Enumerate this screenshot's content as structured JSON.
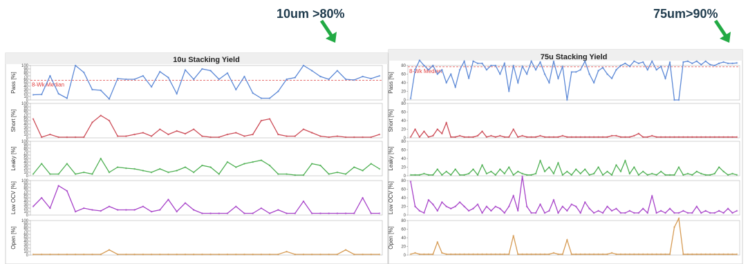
{
  "annotations": {
    "left": "10um >80%",
    "right": "75um>90%",
    "arrow_color": "#22aa44"
  },
  "chart_data": [
    {
      "type": "line",
      "title": "10u Stacking Yield",
      "median_label": "8-Wk Median",
      "median_value": 57,
      "panels": [
        {
          "ylabel": "Pass [%]",
          "color": "#5a87d6",
          "ticks": [
            0,
            10,
            20,
            30,
            40,
            50,
            60,
            70,
            80,
            90,
            100
          ],
          "values": [
            15,
            16,
            70,
            18,
            5,
            100,
            80,
            30,
            28,
            3,
            62,
            60,
            60,
            70,
            38,
            82,
            65,
            18,
            87,
            60,
            90,
            85,
            60,
            78,
            30,
            68,
            20,
            5,
            5,
            25,
            60,
            65,
            100,
            85,
            68,
            60,
            85,
            60,
            58,
            68,
            62,
            70
          ]
        },
        {
          "ylabel": "Short [%]",
          "color": "#cc4a55",
          "ticks": [
            0,
            10,
            20,
            30,
            40,
            50,
            60,
            70,
            80,
            90,
            100
          ],
          "values": [
            55,
            2,
            10,
            2,
            2,
            2,
            2,
            45,
            65,
            50,
            5,
            5,
            10,
            15,
            5,
            25,
            10,
            20,
            12,
            25,
            5,
            2,
            2,
            10,
            15,
            5,
            10,
            50,
            55,
            10,
            5,
            5,
            25,
            15,
            5,
            2,
            5,
            2,
            2,
            2,
            2,
            10
          ]
        },
        {
          "ylabel": "Leaky [%]",
          "color": "#4caf50",
          "ticks": [
            0,
            10,
            20,
            30,
            40,
            50,
            60,
            70,
            80,
            90,
            100
          ],
          "values": [
            5,
            35,
            5,
            5,
            35,
            5,
            10,
            5,
            50,
            10,
            25,
            22,
            20,
            15,
            10,
            20,
            10,
            15,
            25,
            10,
            30,
            25,
            5,
            40,
            25,
            35,
            40,
            45,
            30,
            5,
            5,
            2,
            2,
            35,
            30,
            5,
            10,
            5,
            25,
            15,
            35,
            20
          ]
        },
        {
          "ylabel": "Low OCV [%]",
          "color": "#a640c8",
          "ticks": [
            0,
            10,
            20,
            30,
            40,
            50,
            60,
            70,
            80,
            90,
            100
          ],
          "values": [
            25,
            50,
            20,
            85,
            70,
            10,
            20,
            15,
            12,
            25,
            15,
            15,
            15,
            25,
            10,
            15,
            45,
            10,
            35,
            15,
            5,
            5,
            5,
            5,
            25,
            5,
            5,
            20,
            5,
            15,
            5,
            5,
            40,
            5,
            5,
            5,
            5,
            5,
            5,
            50,
            5,
            5
          ]
        },
        {
          "ylabel": "Open [%]",
          "color": "#d69a52",
          "ticks": [
            0,
            10,
            20,
            30,
            40,
            50,
            60,
            70,
            80,
            90,
            100
          ],
          "values": [
            2,
            2,
            2,
            2,
            2,
            2,
            2,
            2,
            2,
            15,
            2,
            2,
            2,
            2,
            2,
            2,
            2,
            2,
            2,
            2,
            2,
            2,
            2,
            2,
            2,
            2,
            2,
            2,
            2,
            2,
            10,
            2,
            2,
            2,
            2,
            2,
            2,
            15,
            2,
            2,
            2,
            2
          ]
        }
      ]
    },
    {
      "type": "line",
      "title": "75u Stacking Yield",
      "median_label": "8-Wk Median",
      "median_value": 77,
      "panels": [
        {
          "ylabel": "Pass [%]",
          "color": "#5a87d6",
          "ticks": [
            0,
            20,
            40,
            60,
            80
          ],
          "values": [
            3,
            70,
            92,
            80,
            70,
            80,
            60,
            70,
            40,
            60,
            30,
            70,
            90,
            50,
            90,
            85,
            85,
            70,
            80,
            80,
            60,
            85,
            20,
            80,
            40,
            78,
            60,
            90,
            70,
            88,
            60,
            40,
            90,
            50,
            78,
            0,
            65,
            65,
            70,
            90,
            60,
            40,
            68,
            75,
            60,
            50,
            70,
            80,
            85,
            78,
            90,
            85,
            88,
            70,
            90,
            70,
            78,
            50,
            88,
            0,
            0,
            88,
            90,
            85,
            90,
            82,
            90,
            82,
            80,
            85,
            88,
            85,
            85,
            86
          ]
        },
        {
          "ylabel": "Short [%]",
          "color": "#cc4a55",
          "ticks": [
            0,
            20,
            40,
            60,
            80
          ],
          "values": [
            2,
            20,
            2,
            15,
            2,
            5,
            20,
            10,
            35,
            2,
            2,
            5,
            2,
            2,
            2,
            5,
            15,
            2,
            5,
            2,
            5,
            2,
            2,
            20,
            2,
            5,
            2,
            2,
            2,
            5,
            2,
            2,
            2,
            2,
            5,
            2,
            2,
            2,
            2,
            2,
            2,
            2,
            2,
            2,
            2,
            5,
            5,
            2,
            2,
            2,
            5,
            10,
            2,
            2,
            5,
            2,
            2,
            2,
            2,
            2,
            2,
            2,
            2,
            2,
            2,
            2,
            2,
            2,
            2,
            2,
            2,
            2,
            2,
            2
          ]
        },
        {
          "ylabel": "Leaky [%]",
          "color": "#4caf50",
          "ticks": [
            0,
            20,
            40,
            60,
            80
          ],
          "values": [
            2,
            2,
            2,
            5,
            2,
            2,
            15,
            2,
            10,
            2,
            15,
            2,
            2,
            5,
            15,
            2,
            25,
            5,
            10,
            2,
            15,
            5,
            20,
            2,
            10,
            5,
            2,
            2,
            5,
            35,
            10,
            20,
            5,
            30,
            2,
            10,
            2,
            15,
            5,
            15,
            2,
            5,
            20,
            2,
            10,
            2,
            25,
            10,
            35,
            5,
            20,
            2,
            10,
            2,
            5,
            2,
            10,
            2,
            2,
            2,
            20,
            2,
            5,
            2,
            10,
            5,
            2,
            2,
            5,
            20,
            10,
            2,
            5,
            2
          ]
        },
        {
          "ylabel": "Low OCV [%]",
          "color": "#a640c8",
          "ticks": [
            0,
            20,
            40,
            60,
            80
          ],
          "values": [
            78,
            20,
            10,
            5,
            35,
            25,
            10,
            30,
            20,
            15,
            20,
            30,
            20,
            10,
            15,
            25,
            5,
            20,
            10,
            20,
            15,
            5,
            20,
            45,
            10,
            90,
            20,
            5,
            5,
            25,
            5,
            10,
            35,
            5,
            20,
            10,
            25,
            20,
            5,
            30,
            15,
            5,
            10,
            5,
            20,
            10,
            15,
            5,
            5,
            10,
            5,
            5,
            15,
            5,
            45,
            5,
            10,
            5,
            15,
            5,
            5,
            10,
            5,
            5,
            20,
            5,
            10,
            5,
            5,
            10,
            5,
            15,
            5,
            10
          ]
        },
        {
          "ylabel": "Open [%]",
          "color": "#d69a52",
          "ticks": [
            0,
            20,
            40,
            60,
            80
          ],
          "values": [
            2,
            5,
            2,
            2,
            2,
            2,
            30,
            5,
            2,
            2,
            2,
            2,
            2,
            2,
            2,
            2,
            2,
            2,
            2,
            2,
            2,
            2,
            2,
            45,
            2,
            2,
            2,
            2,
            2,
            2,
            2,
            2,
            5,
            2,
            2,
            35,
            2,
            2,
            2,
            2,
            2,
            2,
            2,
            2,
            2,
            5,
            2,
            2,
            2,
            2,
            2,
            2,
            2,
            2,
            2,
            2,
            2,
            2,
            2,
            65,
            85,
            2,
            2,
            2,
            2,
            2,
            2,
            2,
            2,
            2,
            2,
            2,
            2,
            2
          ]
        }
      ]
    }
  ]
}
